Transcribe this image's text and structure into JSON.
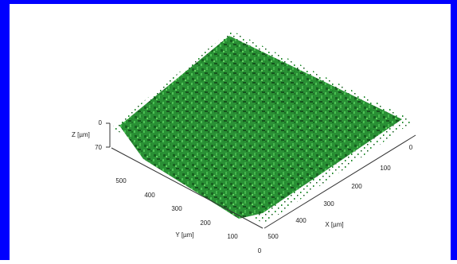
{
  "z_axis": {
    "label": "Z [µm]",
    "ticks": [
      "0",
      "70"
    ]
  },
  "y_axis": {
    "label": "Y [µm]",
    "ticks": [
      "500",
      "400",
      "300",
      "200",
      "100",
      "0"
    ]
  },
  "x_axis": {
    "label": "X [µm]",
    "ticks": [
      "500",
      "400",
      "300",
      "200",
      "100",
      "0"
    ]
  }
}
